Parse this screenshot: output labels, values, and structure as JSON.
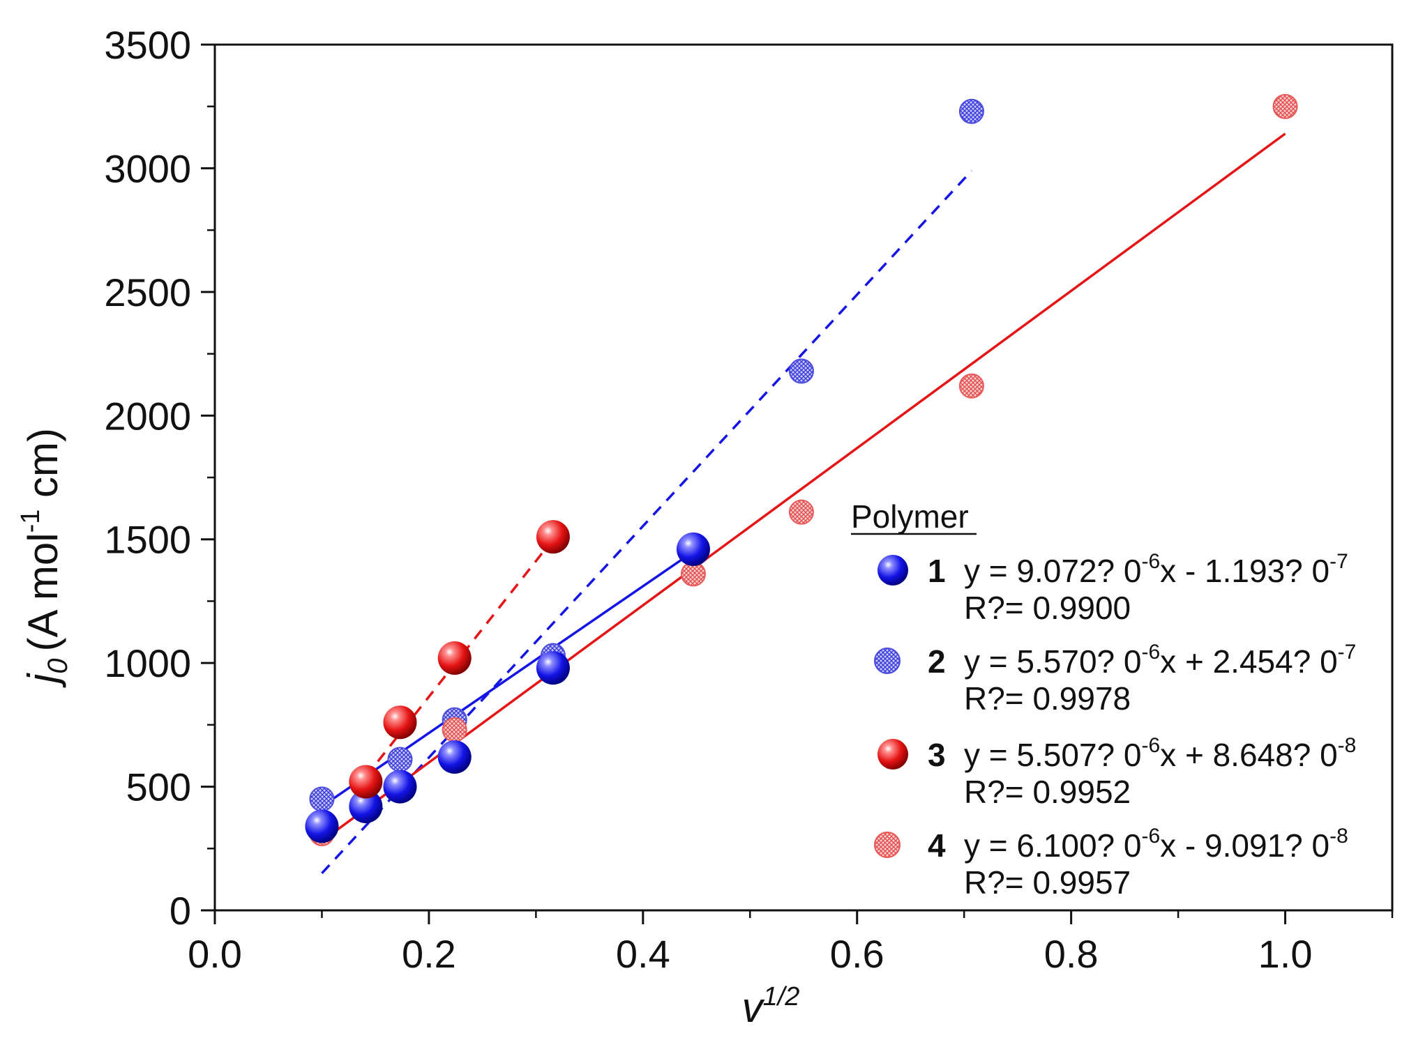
{
  "chart_data": {
    "type": "scatter",
    "title": "",
    "xlabel": "v",
    "xlabel_sup": "1/2",
    "ylabel_j": "j",
    "ylabel_j_sub": "0",
    "ylabel_unit_pre": "(A mol",
    "ylabel_unit_sup": "-1",
    "ylabel_unit_post": " cm)",
    "xlim": [
      0.0,
      1.1
    ],
    "ylim": [
      0,
      3500
    ],
    "x_ticks": [
      0.0,
      0.2,
      0.4,
      0.6,
      0.8,
      1.0
    ],
    "x_tick_labels": [
      "0.0",
      "0.2",
      "0.4",
      "0.6",
      "0.8",
      "1.0"
    ],
    "y_ticks": [
      0,
      500,
      1000,
      1500,
      2000,
      2500,
      3000,
      3500
    ],
    "y_tick_labels": [
      "0",
      "500",
      "1000",
      "1500",
      "2000",
      "2500",
      "3000",
      "3500"
    ],
    "legend": {
      "title": "Polymer",
      "placement": "center-right",
      "entries": [
        {
          "num": "1",
          "eq_pre": "y = 9.072? 0",
          "eq_sup1": "-6",
          "eq_mid": "x - 1.193? 0",
          "eq_sup2": "-7",
          "r2": "R?= 0.9900"
        },
        {
          "num": "2",
          "eq_pre": "y = 5.570? 0",
          "eq_sup1": "-6",
          "eq_mid": "x + 2.454? 0",
          "eq_sup2": "-7",
          "r2": "R?= 0.9978"
        },
        {
          "num": "3",
          "eq_pre": "y = 5.507? 0",
          "eq_sup1": "-6",
          "eq_mid": "x + 8.648? 0",
          "eq_sup2": "-8",
          "r2": "R?= 0.9952"
        },
        {
          "num": "4",
          "eq_pre": "y = 6.100? 0",
          "eq_sup1": "-6",
          "eq_mid": "x - 9.091? 0",
          "eq_sup2": "-8",
          "r2": "R?= 0.9957"
        }
      ]
    },
    "series": [
      {
        "name": "1",
        "color": "#1414e6",
        "style": "solid-sphere",
        "x": [
          0.1,
          0.141,
          0.173,
          0.224,
          0.316,
          0.447
        ],
        "y": [
          340,
          420,
          500,
          620,
          980,
          1460
        ],
        "fit": {
          "type": "solid",
          "x": [
            0.1,
            0.447
          ],
          "y": [
            420,
            1450
          ]
        }
      },
      {
        "name": "2",
        "color": "#4b4bdc",
        "style": "hatched-sphere",
        "x": [
          0.1,
          0.173,
          0.224,
          0.316,
          0.447,
          0.548,
          0.707
        ],
        "y": [
          450,
          610,
          770,
          1030,
          1460,
          2180,
          3230
        ],
        "fit": {
          "type": "dashed",
          "x": [
            0.1,
            0.707
          ],
          "y": [
            150,
            2990
          ]
        }
      },
      {
        "name": "3",
        "color": "#e61414",
        "style": "solid-sphere",
        "x": [
          0.141,
          0.173,
          0.224,
          0.316
        ],
        "y": [
          520,
          760,
          1020,
          1510
        ],
        "fit": {
          "type": "dashed",
          "x": [
            0.141,
            0.316
          ],
          "y": [
            540,
            1500
          ]
        }
      },
      {
        "name": "4",
        "color": "#e85a5a",
        "style": "hatched-sphere",
        "x": [
          0.1,
          0.141,
          0.173,
          0.224,
          0.316,
          0.447,
          0.548,
          0.707,
          1.0
        ],
        "y": [
          310,
          410,
          500,
          730,
          980,
          1360,
          1610,
          2120,
          3250
        ],
        "fit": {
          "type": "solid",
          "x": [
            0.1,
            1.0
          ],
          "y": [
            280,
            3140
          ]
        }
      }
    ],
    "legend_order": [
      0,
      1,
      2,
      3
    ]
  },
  "colors": {
    "blue": "#1414e6",
    "blue_light": "#4b4bdc",
    "red": "#e61414",
    "red_light": "#e85a5a",
    "axis": "#111111"
  }
}
